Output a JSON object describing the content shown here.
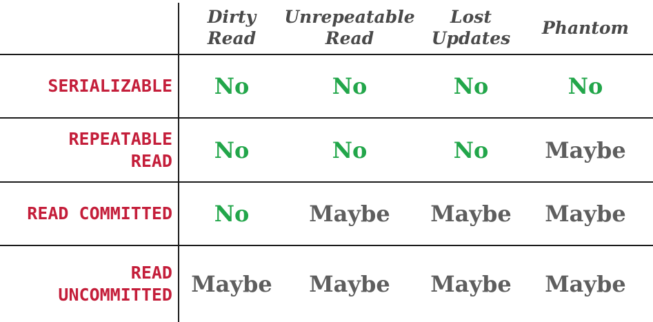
{
  "table": {
    "columns": [
      {
        "label": "Dirty\nRead"
      },
      {
        "label": "Unrepeatable\nRead"
      },
      {
        "label": "Lost\nUpdates"
      },
      {
        "label": "Phantom"
      }
    ],
    "rows": [
      {
        "label": "SERIALIZABLE",
        "values": [
          "No",
          "No",
          "No",
          "No"
        ]
      },
      {
        "label": "REPEATABLE\nREAD",
        "values": [
          "No",
          "No",
          "No",
          "Maybe"
        ]
      },
      {
        "label": "READ COMMITTED",
        "values": [
          "No",
          "Maybe",
          "Maybe",
          "Maybe"
        ]
      },
      {
        "label": "READ\nUNCOMMITTED",
        "values": [
          "Maybe",
          "Maybe",
          "Maybe",
          "Maybe"
        ]
      }
    ]
  },
  "colors": {
    "row_label": "#c41e3a",
    "no": "#22a64a",
    "maybe": "#5e5e5e",
    "column_label": "#4a4a4a",
    "rule": "#1a1a1a"
  }
}
